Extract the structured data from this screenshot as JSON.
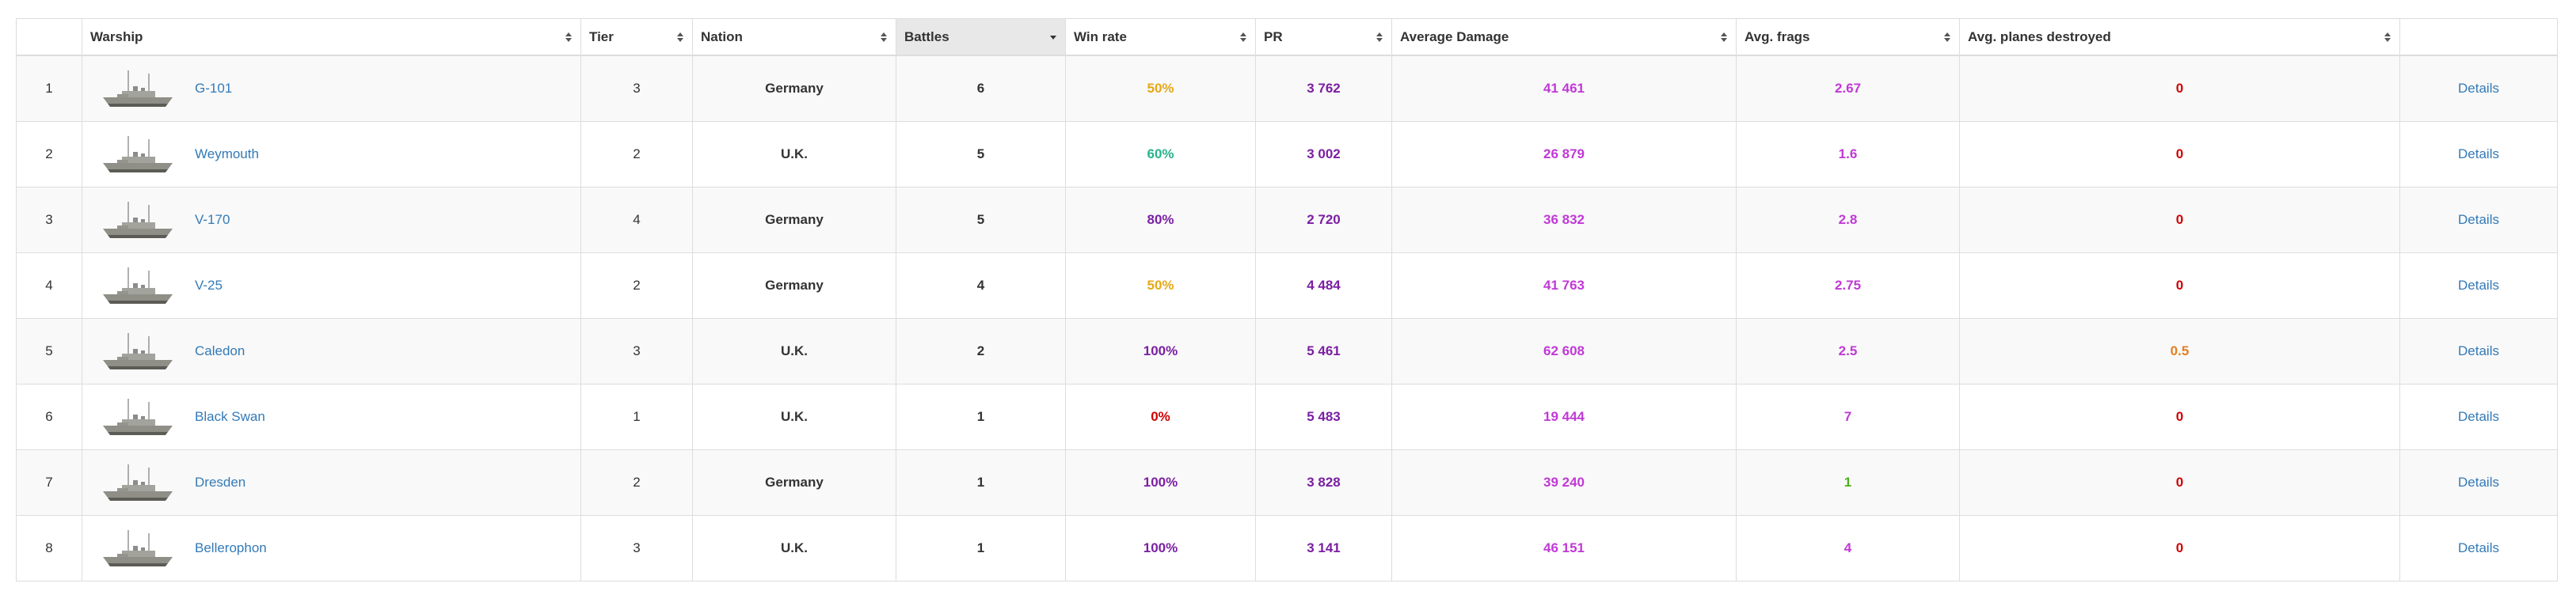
{
  "columns": [
    {
      "key": "idx",
      "label": ""
    },
    {
      "key": "warship",
      "label": "Warship"
    },
    {
      "key": "tier",
      "label": "Tier"
    },
    {
      "key": "nation",
      "label": "Nation"
    },
    {
      "key": "battles",
      "label": "Battles"
    },
    {
      "key": "winrate",
      "label": "Win rate"
    },
    {
      "key": "pr",
      "label": "PR"
    },
    {
      "key": "avg_damage",
      "label": "Average Damage"
    },
    {
      "key": "avg_frags",
      "label": "Avg. frags"
    },
    {
      "key": "avg_planes",
      "label": "Avg. planes destroyed"
    },
    {
      "key": "actions",
      "label": ""
    }
  ],
  "sorted_column": "battles",
  "sort_direction": "descending",
  "rows": [
    {
      "index": "1",
      "ship": "G-101",
      "tier": "3",
      "nation": "Germany",
      "battles": "6",
      "winrate": "50%",
      "winrate_color": "#e6a817",
      "pr": "3 762",
      "pr_color": "#7b1fa2",
      "damage": "41 461",
      "damage_color": "#c039d6",
      "frags": "2.67",
      "frags_color": "#c039d6",
      "planes": "0",
      "planes_color": "#d00000",
      "details": "Details"
    },
    {
      "index": "2",
      "ship": "Weymouth",
      "tier": "2",
      "nation": "U.K.",
      "battles": "5",
      "winrate": "60%",
      "winrate_color": "#27b38a",
      "pr": "3 002",
      "pr_color": "#7b1fa2",
      "damage": "26 879",
      "damage_color": "#c039d6",
      "frags": "1.6",
      "frags_color": "#c039d6",
      "planes": "0",
      "planes_color": "#d00000",
      "details": "Details"
    },
    {
      "index": "3",
      "ship": "V-170",
      "tier": "4",
      "nation": "Germany",
      "battles": "5",
      "winrate": "80%",
      "winrate_color": "#7b1fa2",
      "pr": "2 720",
      "pr_color": "#7b1fa2",
      "damage": "36 832",
      "damage_color": "#c039d6",
      "frags": "2.8",
      "frags_color": "#c039d6",
      "planes": "0",
      "planes_color": "#d00000",
      "details": "Details"
    },
    {
      "index": "4",
      "ship": "V-25",
      "tier": "2",
      "nation": "Germany",
      "battles": "4",
      "winrate": "50%",
      "winrate_color": "#e6a817",
      "pr": "4 484",
      "pr_color": "#7b1fa2",
      "damage": "41 763",
      "damage_color": "#c039d6",
      "frags": "2.75",
      "frags_color": "#c039d6",
      "planes": "0",
      "planes_color": "#d00000",
      "details": "Details"
    },
    {
      "index": "5",
      "ship": "Caledon",
      "tier": "3",
      "nation": "U.K.",
      "battles": "2",
      "winrate": "100%",
      "winrate_color": "#7b1fa2",
      "pr": "5 461",
      "pr_color": "#7b1fa2",
      "damage": "62 608",
      "damage_color": "#c039d6",
      "frags": "2.5",
      "frags_color": "#c039d6",
      "planes": "0.5",
      "planes_color": "#e67e22",
      "details": "Details"
    },
    {
      "index": "6",
      "ship": "Black Swan",
      "tier": "1",
      "nation": "U.K.",
      "battles": "1",
      "winrate": "0%",
      "winrate_color": "#d00000",
      "pr": "5 483",
      "pr_color": "#7b1fa2",
      "damage": "19 444",
      "damage_color": "#c039d6",
      "frags": "7",
      "frags_color": "#c039d6",
      "planes": "0",
      "planes_color": "#d00000",
      "details": "Details"
    },
    {
      "index": "7",
      "ship": "Dresden",
      "tier": "2",
      "nation": "Germany",
      "battles": "1",
      "winrate": "100%",
      "winrate_color": "#7b1fa2",
      "pr": "3 828",
      "pr_color": "#7b1fa2",
      "damage": "39 240",
      "damage_color": "#c039d6",
      "frags": "1",
      "frags_color": "#4caf1a",
      "planes": "0",
      "planes_color": "#d00000",
      "details": "Details"
    },
    {
      "index": "8",
      "ship": "Bellerophon",
      "tier": "3",
      "nation": "U.K.",
      "battles": "1",
      "winrate": "100%",
      "winrate_color": "#7b1fa2",
      "pr": "3 141",
      "pr_color": "#7b1fa2",
      "damage": "46 151",
      "damage_color": "#c039d6",
      "frags": "4",
      "frags_color": "#c039d6",
      "planes": "0",
      "planes_color": "#d00000",
      "details": "Details"
    }
  ]
}
